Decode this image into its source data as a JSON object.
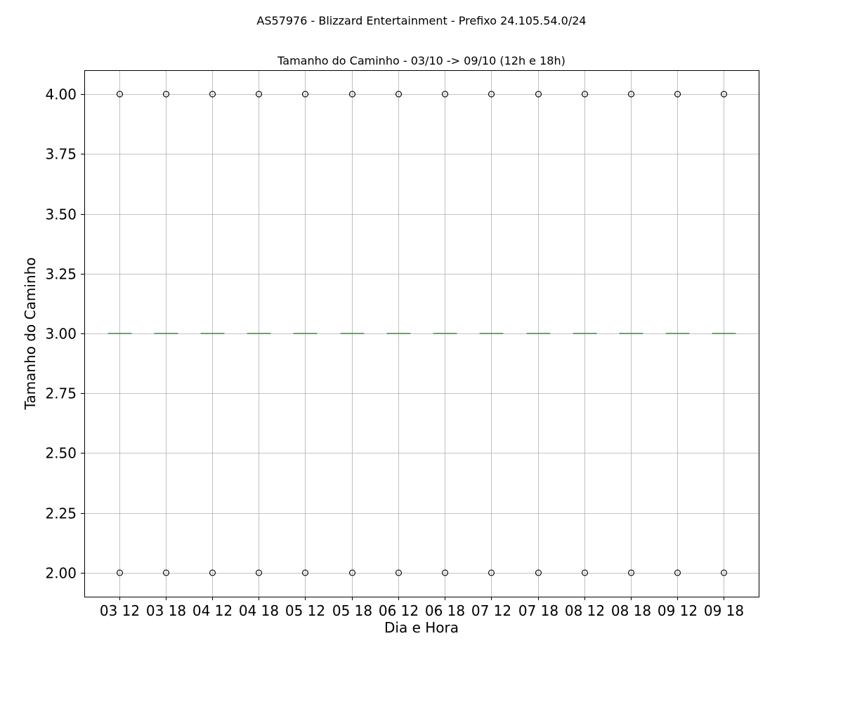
{
  "suptitle": "AS57976 - Blizzard Entertainment - Prefixo 24.105.54.0/24",
  "chart_data": {
    "type": "box",
    "title": "Tamanho do Caminho - 03/10 -> 09/10 (12h e 18h)",
    "xlabel": "Dia e Hora",
    "ylabel": "Tamanho do Caminho",
    "ylim": [
      1.9,
      4.1
    ],
    "yticks": [
      "2.00",
      "2.25",
      "2.50",
      "2.75",
      "3.00",
      "3.25",
      "3.50",
      "3.75",
      "4.00"
    ],
    "grid": true,
    "categories": [
      "03 12",
      "03 18",
      "04 12",
      "04 18",
      "05 12",
      "05 18",
      "06 12",
      "06 18",
      "07 12",
      "07 18",
      "08 12",
      "08 18",
      "09 12",
      "09 18"
    ],
    "medians": [
      3,
      3,
      3,
      3,
      3,
      3,
      3,
      3,
      3,
      3,
      3,
      3,
      3,
      3
    ],
    "q1": [
      3,
      3,
      3,
      3,
      3,
      3,
      3,
      3,
      3,
      3,
      3,
      3,
      3,
      3
    ],
    "q3": [
      3,
      3,
      3,
      3,
      3,
      3,
      3,
      3,
      3,
      3,
      3,
      3,
      3,
      3
    ],
    "whisker_low": [
      3,
      3,
      3,
      3,
      3,
      3,
      3,
      3,
      3,
      3,
      3,
      3,
      3,
      3
    ],
    "whisker_high": [
      3,
      3,
      3,
      3,
      3,
      3,
      3,
      3,
      3,
      3,
      3,
      3,
      3,
      3
    ],
    "outliers": [
      [
        2,
        4
      ],
      [
        2,
        4
      ],
      [
        2,
        4
      ],
      [
        2,
        4
      ],
      [
        2,
        4
      ],
      [
        2,
        4
      ],
      [
        2,
        4
      ],
      [
        2,
        4
      ],
      [
        2,
        4
      ],
      [
        2,
        4
      ],
      [
        2,
        4
      ],
      [
        2,
        4
      ],
      [
        2,
        4
      ],
      [
        2,
        4
      ]
    ],
    "colors": {
      "median": "#2ca02c",
      "grid": "#b0b0b0",
      "axes": "#000000",
      "outlier": "#000000"
    }
  }
}
